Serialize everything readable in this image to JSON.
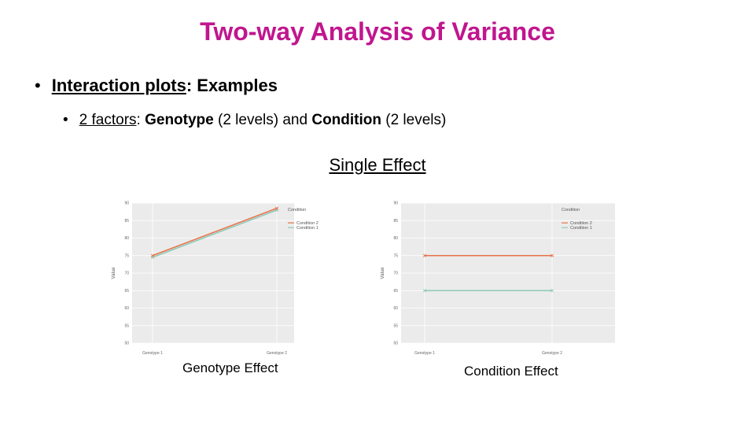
{
  "slide": {
    "title": "Two-way Analysis of Variance",
    "bullet1": {
      "link": "Interaction plots",
      "rest": ": Examples"
    },
    "bullet2": {
      "link": "2 factors",
      "sep": ": ",
      "f1": "Genotype",
      "f1_detail": " (2 levels) and ",
      "f2": "Condition",
      "f2_detail": " (2 levels)"
    },
    "subtitle": "Single Effect",
    "captions": [
      "Genotype Effect",
      "Condition Effect"
    ]
  },
  "chart_data": [
    {
      "type": "line",
      "x": [
        "Genotype 1",
        "Genotype 2"
      ],
      "ylabel": "Value",
      "ylim": [
        50,
        90
      ],
      "yticks": [
        50,
        55,
        60,
        65,
        70,
        75,
        80,
        85,
        90
      ],
      "legend_title": "Condition",
      "legend_position": "top-right",
      "series": [
        {
          "name": "Condition 2",
          "values": [
            75,
            88.5
          ],
          "color": "#e8734a"
        },
        {
          "name": "Condition 1",
          "values": [
            74.5,
            88
          ],
          "color": "#8fc9b9"
        }
      ]
    },
    {
      "type": "line",
      "x": [
        "Genotype 1",
        "Genotype 2"
      ],
      "ylabel": "Value",
      "ylim": [
        50,
        90
      ],
      "yticks": [
        50,
        55,
        60,
        65,
        70,
        75,
        80,
        85,
        90
      ],
      "legend_title": "Condition",
      "legend_position": "top-right",
      "series": [
        {
          "name": "Condition 2",
          "values": [
            75,
            75
          ],
          "color": "#e8734a"
        },
        {
          "name": "Condition 1",
          "values": [
            65,
            65
          ],
          "color": "#8fc9b9"
        }
      ]
    }
  ]
}
